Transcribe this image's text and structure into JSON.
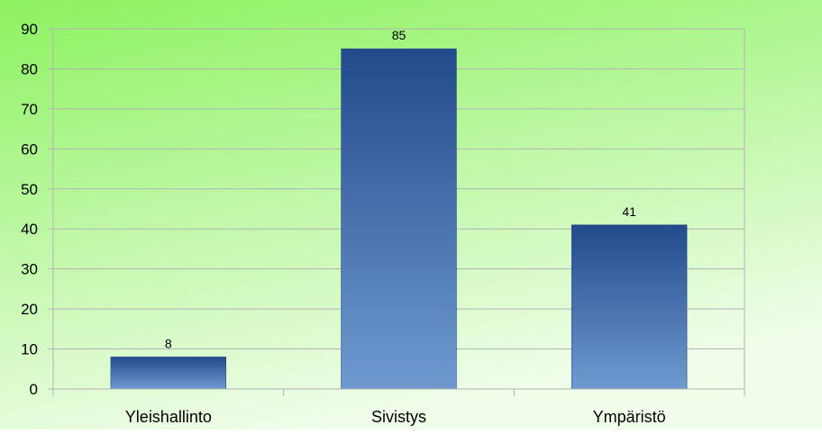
{
  "chart_data": {
    "type": "bar",
    "categories": [
      "Yleishallinto",
      "Sivistys",
      "Ympäristö"
    ],
    "values": [
      8,
      85,
      41
    ],
    "data_labels": [
      "8",
      "85",
      "41"
    ],
    "ylim": [
      0,
      90
    ],
    "yticks": [
      0,
      10,
      20,
      30,
      40,
      50,
      60,
      70,
      80,
      90
    ],
    "title": "",
    "xlabel": "",
    "ylabel": "",
    "grid": true,
    "legend": "none",
    "colors": {
      "background_top": "#8cf25f",
      "background_bottom": "#effde9",
      "bar_top": "#234a8b",
      "bar_bottom": "#6f9ad0",
      "grid": "#b3b3b3",
      "axis": "#b3b3b3",
      "text": "#000000"
    }
  }
}
